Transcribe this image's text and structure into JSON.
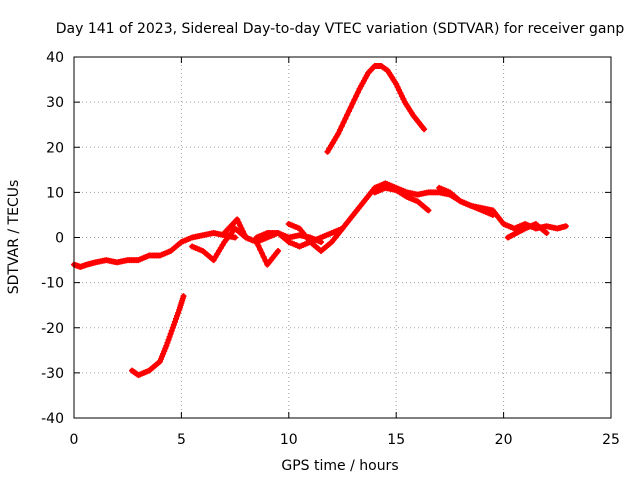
{
  "chart_data": {
    "type": "scatter",
    "title": "Day 141 of 2023, Sidereal Day-to-day VTEC variation (SDTVAR) for receiver ganp",
    "xlabel": "GPS time / hours",
    "ylabel": "SDTVAR / TECUs",
    "xlim": [
      0,
      25
    ],
    "ylim": [
      -40,
      40
    ],
    "xticks": [
      0,
      5,
      10,
      15,
      20,
      25
    ],
    "yticks": [
      -40,
      -30,
      -20,
      -10,
      0,
      10,
      20,
      30,
      40
    ],
    "grid": true,
    "color": "#ff0000",
    "series": [
      {
        "name": "track-main-1",
        "x": [
          0,
          0.3,
          0.6,
          1.0,
          1.5,
          2.0,
          2.5,
          3.0,
          3.5,
          4.0,
          4.5,
          5.0,
          5.5,
          6.0,
          6.5,
          7.0,
          7.5
        ],
        "y": [
          -6,
          -6.5,
          -6,
          -5.5,
          -5,
          -5.5,
          -5,
          -5,
          -4,
          -4,
          -3,
          -1,
          0,
          0.5,
          1,
          0.5,
          0
        ]
      },
      {
        "name": "track-main-2",
        "x": [
          5.5,
          6.0,
          6.5,
          7.0,
          7.5,
          8.0,
          8.5,
          9.0,
          9.5
        ],
        "y": [
          -2,
          -3,
          -5,
          -1,
          2,
          0,
          -1,
          -6,
          -3
        ]
      },
      {
        "name": "track-main-3",
        "x": [
          7.0,
          7.3,
          7.6,
          8.0,
          8.5,
          9.0,
          9.5,
          10.0,
          10.5,
          11.0,
          11.5
        ],
        "y": [
          1,
          2.5,
          4,
          0,
          -1,
          0,
          1,
          0,
          0.5,
          0,
          -1
        ]
      },
      {
        "name": "track-main-4",
        "x": [
          8.5,
          9.0,
          9.5,
          10.0,
          10.5,
          11.0,
          11.5,
          12.0,
          12.5
        ],
        "y": [
          0,
          1,
          1,
          -1,
          -2,
          -1,
          0,
          1,
          2
        ]
      },
      {
        "name": "track-main-5",
        "x": [
          10.0,
          10.5,
          11.0,
          11.5,
          12.0,
          12.5,
          13.0,
          13.5,
          14.0,
          14.5,
          15.0,
          15.5,
          16.0,
          16.5,
          17.0,
          17.5,
          18.0,
          18.5,
          19.0,
          19.5
        ],
        "y": [
          3,
          2,
          -1,
          -3,
          -1,
          2,
          5,
          8,
          11,
          12,
          11,
          10,
          9.5,
          10,
          10,
          9.5,
          8,
          7,
          6,
          5
        ]
      },
      {
        "name": "track-main-6",
        "x": [
          14.0,
          14.5,
          15.0,
          15.5,
          16.0,
          16.5
        ],
        "y": [
          10,
          11,
          10.5,
          9,
          8,
          6
        ]
      },
      {
        "name": "track-main-7",
        "x": [
          17.0,
          17.5,
          18.0,
          18.5,
          19.0,
          19.5,
          20.0,
          20.5,
          21.0,
          21.5,
          22.0,
          22.5,
          22.9
        ],
        "y": [
          11,
          10,
          8,
          7,
          6.5,
          6,
          3,
          2,
          3,
          2,
          2.5,
          2,
          2.5
        ]
      },
      {
        "name": "track-low-7b",
        "x": [
          20.2,
          20.6,
          21.0,
          21.5,
          22.0
        ],
        "y": [
          0,
          1,
          2,
          3,
          1
        ]
      },
      {
        "name": "track-arc-up",
        "x": [
          11.8,
          12.3,
          12.8,
          13.3,
          13.7,
          14.0,
          14.3,
          14.6,
          15.0,
          15.4,
          15.8,
          16.3
        ],
        "y": [
          19,
          23,
          28,
          33,
          36.5,
          38,
          38,
          37,
          34,
          30,
          27,
          24
        ]
      },
      {
        "name": "track-arc-down",
        "x": [
          2.7,
          3.0,
          3.5,
          4.0,
          4.3,
          4.6,
          4.9,
          5.1
        ],
        "y": [
          -29.5,
          -30.5,
          -29.5,
          -27.5,
          -24,
          -20,
          -16,
          -13
        ]
      }
    ]
  }
}
